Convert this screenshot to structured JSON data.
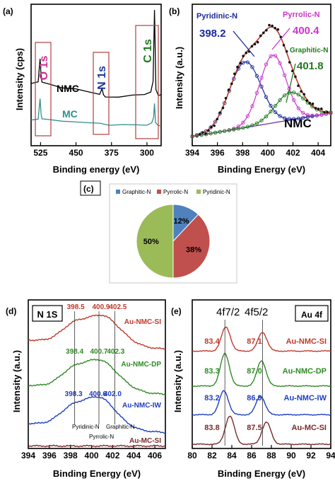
{
  "chart_data": [
    {
      "panel": "(a)",
      "type": "line",
      "xlabel": "Binding energy (eV)",
      "ylabel": "Intensity (cps)",
      "xlim": [
        545,
        270
      ],
      "x_ticks": [
        525,
        450,
        375,
        300
      ],
      "annotations": [
        "O 1s",
        "N 1s",
        "C 1s"
      ],
      "series": [
        {
          "name": "NMC",
          "color": "#000000",
          "x": [
            545,
            530,
            526,
            524,
            522,
            505,
            480,
            450,
            420,
            400,
            395,
            392,
            388,
            360,
            330,
            305,
            292,
            287,
            284,
            281,
            276,
            270
          ],
          "y": [
            0.44,
            0.45,
            0.62,
            0.5,
            0.45,
            0.44,
            0.41,
            0.4,
            0.38,
            0.36,
            0.4,
            0.36,
            0.34,
            0.34,
            0.36,
            0.36,
            0.38,
            0.46,
            0.96,
            0.4,
            0.36,
            0.36
          ]
        },
        {
          "name": "MC",
          "color": "#2f8f8f",
          "x": [
            545,
            530,
            526,
            524,
            522,
            505,
            480,
            450,
            420,
            400,
            380,
            350,
            320,
            300,
            290,
            286,
            284,
            282,
            276,
            270
          ],
          "y": [
            0.18,
            0.19,
            0.33,
            0.22,
            0.19,
            0.18,
            0.17,
            0.17,
            0.16,
            0.16,
            0.15,
            0.15,
            0.15,
            0.15,
            0.16,
            0.2,
            0.3,
            0.16,
            0.14,
            0.14
          ]
        }
      ]
    },
    {
      "panel": "(b)",
      "type": "line",
      "title": "NMC",
      "xlabel": "Binding Energy (eV)",
      "ylabel": "Intensity (a.u.)",
      "xlim": [
        394,
        405
      ],
      "x_ticks": [
        394,
        396,
        398,
        400,
        402,
        404
      ],
      "peaks": [
        {
          "name": "Pyridinic-N",
          "position": "398.2",
          "color": "#1a2a9c"
        },
        {
          "name": "Pyrrolic-N",
          "position": "400.4",
          "color": "#cc33cc"
        },
        {
          "name": "Graphitic-N",
          "position": "401.8",
          "color": "#1f7a1f"
        }
      ]
    },
    {
      "panel": "(c)",
      "type": "pie",
      "categories": [
        "Graphitic-N",
        "Pyrrolic-N",
        "Pyridinic-N"
      ],
      "values": [
        12,
        38,
        50
      ],
      "labels": [
        "12%",
        "38%",
        "50%"
      ],
      "colors": [
        "#4f81bd",
        "#c0504d",
        "#9bbb59"
      ],
      "legend": "top"
    },
    {
      "panel": "(d)",
      "type": "line",
      "title": "N 1S",
      "xlabel": "Binding Energy (eV)",
      "ylabel": "Intensity (a.u.)",
      "xlim": [
        394,
        407
      ],
      "x_ticks": [
        394,
        396,
        398,
        400,
        402,
        404,
        406
      ],
      "series": [
        {
          "name": "Au-NMC-SI",
          "color": "#c0392b",
          "peak_labels": [
            "398.5",
            "400.9",
            "402.5"
          ]
        },
        {
          "name": "Au-NMC-DP",
          "color": "#2e8b22",
          "peak_labels": [
            "398.4",
            "400.7",
            "402.3"
          ]
        },
        {
          "name": "Au-NMC-IW",
          "color": "#1f3fbf",
          "peak_labels": [
            "398.3",
            "400.6",
            "402.0"
          ]
        },
        {
          "name": "Au-MC-SI",
          "color": "#7a2a2a",
          "peak_labels": []
        }
      ],
      "markers": [
        "Pyridinic-N",
        "Pyrrolic-N",
        "Graphitic-N"
      ]
    },
    {
      "panel": "(e)",
      "type": "line",
      "title": "Au 4f",
      "xlabel": "Binding Energy (eV)",
      "ylabel": "Intensity (a.u.)",
      "xlim": [
        80,
        94
      ],
      "x_ticks": [
        80,
        82,
        84,
        86,
        88,
        90,
        92,
        94
      ],
      "orbital_labels": [
        "4f7/2",
        "4f5/2"
      ],
      "series": [
        {
          "name": "Au-NMC-SI",
          "color": "#c0392b",
          "peak_labels": [
            "83.4",
            "87.1"
          ]
        },
        {
          "name": "Au-NMC-DP",
          "color": "#2e8b22",
          "peak_labels": [
            "83.3",
            "87.0"
          ]
        },
        {
          "name": "Au-NMC-IW",
          "color": "#1f3fbf",
          "peak_labels": [
            "83.2",
            "86.9"
          ]
        },
        {
          "name": "Au-MC-SI",
          "color": "#7a2a2a",
          "peak_labels": [
            "83.8",
            "87.5"
          ]
        }
      ]
    }
  ]
}
